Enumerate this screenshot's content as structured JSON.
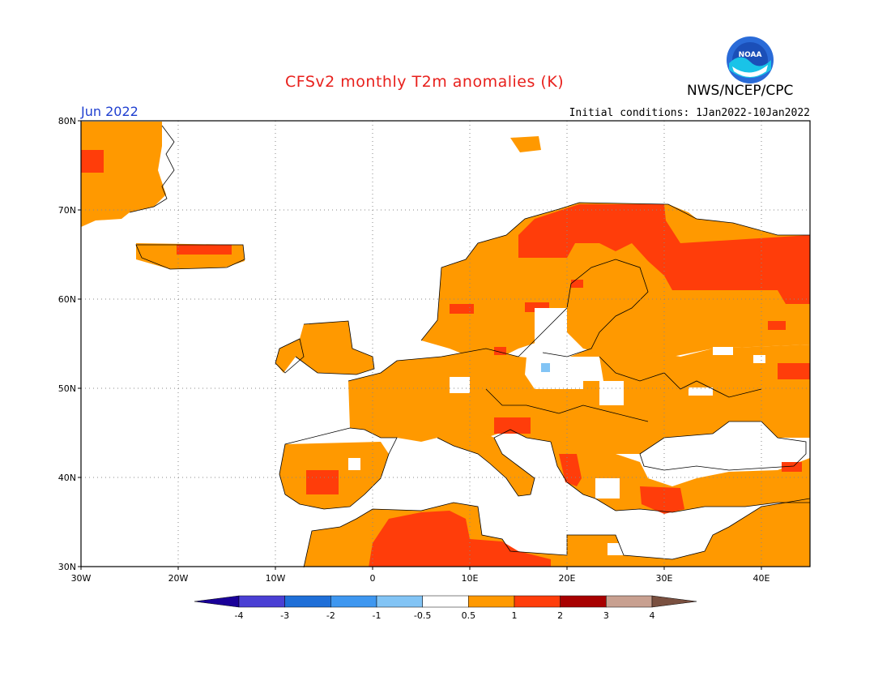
{
  "header": {
    "title": "CFSv2 monthly T2m anomalies (K)",
    "agency": "NWS/NCEP/CPC",
    "logo_text": "NOAA",
    "period": "Jun 2022",
    "initial_conditions": "Initial conditions: 1Jan2022-10Jan2022"
  },
  "map": {
    "region": "Europe",
    "lon_range": [
      -30,
      45
    ],
    "lat_range": [
      30,
      80
    ],
    "lat_labels": [
      "80N",
      "70N",
      "60N",
      "50N",
      "40N",
      "30N"
    ],
    "lon_labels": [
      "30W",
      "20W",
      "10W",
      "0",
      "10E",
      "20E",
      "30E",
      "40E"
    ],
    "grid": "dotted"
  },
  "colorbar": {
    "labels": [
      "-4",
      "-3",
      "-2",
      "-1",
      "-0.5",
      "0.5",
      "1",
      "2",
      "3",
      "4"
    ],
    "colors": [
      "#1a0099",
      "#4a3fd4",
      "#1f6fd8",
      "#3e97f0",
      "#82c4f5",
      "#ffffff",
      "#ff9900",
      "#ff3d0a",
      "#a80000",
      "#c8a090",
      "#7a5040"
    ]
  },
  "legend_colors": {
    "positive_0_5_1": "#ff9900",
    "positive_1_2": "#ff3d0a",
    "negative_0_5_1": "#82c4f5",
    "ocean": "#ffffff",
    "coast": "#000000"
  }
}
